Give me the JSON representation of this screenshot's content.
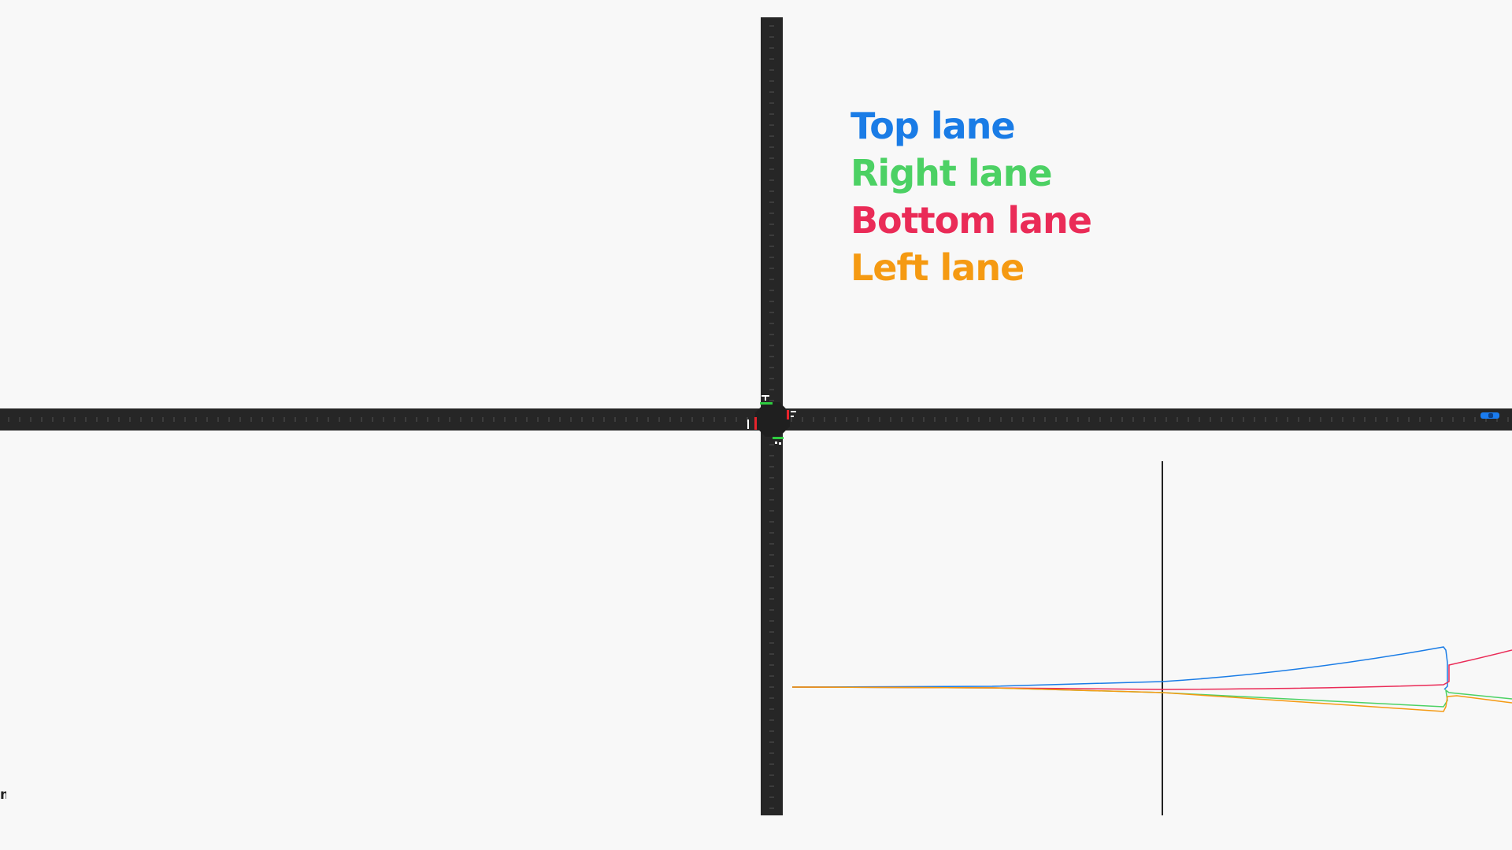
{
  "legend": {
    "items": [
      {
        "label": "Top lane",
        "color": "#1a7ce6"
      },
      {
        "label": "Right lane",
        "color": "#4cd164"
      },
      {
        "label": "Bottom lane",
        "color": "#ea2b57"
      },
      {
        "label": "Left lane",
        "color": "#f59a12"
      }
    ]
  },
  "corner_text": "m",
  "colors": {
    "background": "#f8f8f8",
    "road": "#262626",
    "light_green": "#2ecc40",
    "light_red": "#e8242c",
    "car": "#1a7cf0"
  },
  "traffic_lights": {
    "top": "green",
    "left": "red",
    "right": "red",
    "bottom": "green"
  }
}
